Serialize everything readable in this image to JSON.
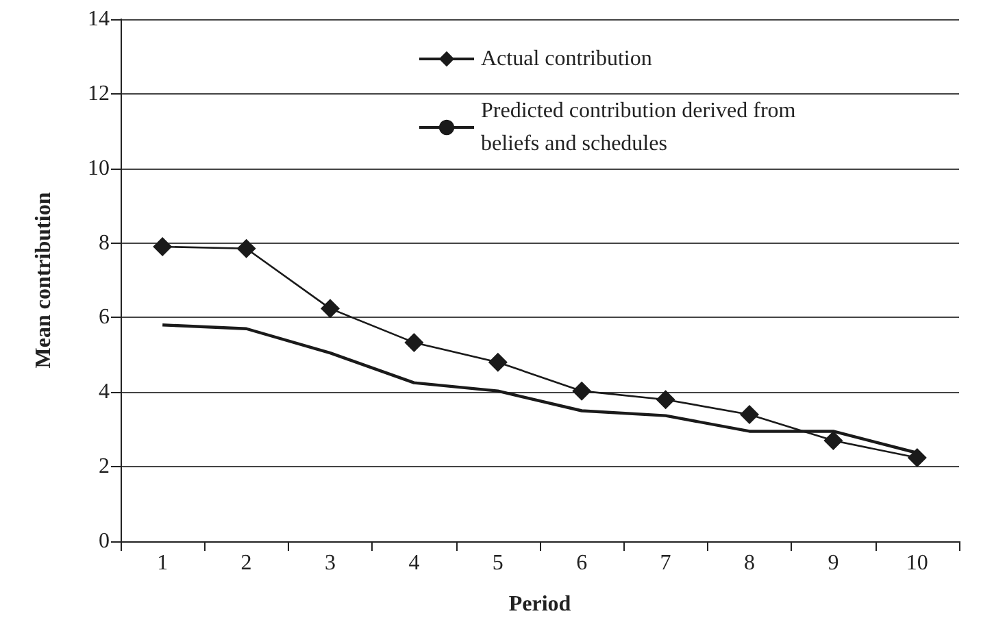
{
  "chart_data": {
    "type": "line",
    "xlabel": "Period",
    "ylabel": "Mean contribution",
    "categories": [
      "1",
      "2",
      "3",
      "4",
      "5",
      "6",
      "7",
      "8",
      "9",
      "10"
    ],
    "series": [
      {
        "name": "Actual contribution",
        "color": "#1a1a1a",
        "marker": "diamond",
        "values": [
          7.9,
          7.85,
          6.24,
          5.33,
          4.8,
          4.03,
          3.8,
          3.4,
          2.7,
          2.24
        ]
      },
      {
        "name": "Predicted contribution derived from beliefs and schedules",
        "color": "#1a1a1a",
        "marker": "none",
        "values": [
          5.8,
          5.7,
          5.05,
          4.25,
          4.03,
          3.5,
          3.37,
          2.95,
          2.95,
          2.37
        ]
      }
    ],
    "ylim": [
      0,
      14
    ],
    "yticks": [
      0,
      2,
      4,
      6,
      8,
      10,
      12,
      14
    ],
    "grid": "y",
    "legend": "top right",
    "line_style": "solid"
  }
}
